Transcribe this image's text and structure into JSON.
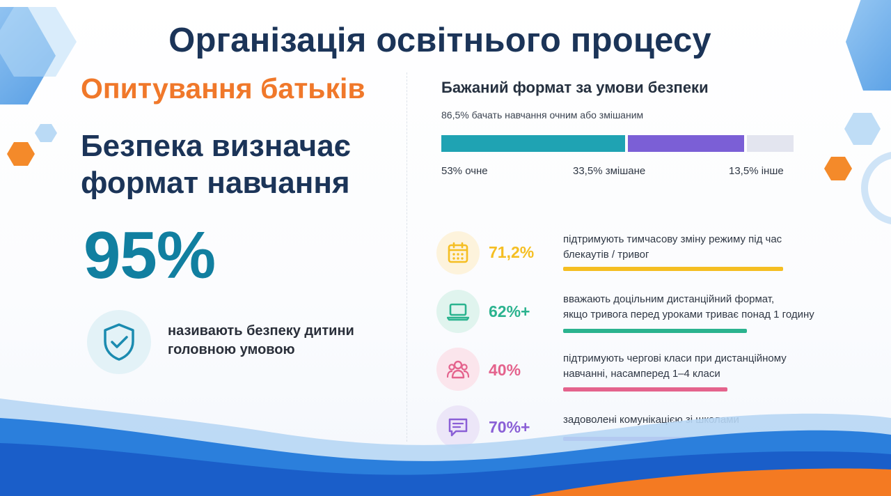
{
  "header": {
    "title": "Організація освітнього процесу"
  },
  "left": {
    "subtitle": "Опитування батьків",
    "headline_line1": "Безпека визначає",
    "headline_line2": "формат навчання",
    "big_number": "95%",
    "safety_text_line1": "називають безпеку дитини",
    "safety_text_line2": "головною умовою",
    "icon": "shield-check-icon"
  },
  "right": {
    "title": "Бажаний формат за умови безпеки",
    "note": "86,5% бачать навчання очним або змішаним",
    "format_bar": [
      {
        "label": "53% очне",
        "share": 53,
        "color": "#1fa3b3"
      },
      {
        "label": "33,5% змішане",
        "share": 33.5,
        "color": "#7b5fd6"
      },
      {
        "label": "13,5% інше",
        "share": 13.5,
        "color": "#e3e5ef"
      }
    ],
    "stats": [
      {
        "value": "71,2%",
        "line1": "підтримують тимчасову зміну режиму під час",
        "line2": "блекаутів / тривог",
        "icon": "calendar-icon",
        "color": "#f5be22",
        "bg": "#fdf3dc"
      },
      {
        "value": "62%+",
        "line1": "вважають доцільним дистанційний формат,",
        "line2": "якщо тривога перед уроками триває понад 1 годину",
        "icon": "laptop-icon",
        "color": "#2bb38f",
        "bg": "#e0f4ee"
      },
      {
        "value": "40%",
        "line1": "підтримують чергові класи при дистанційному",
        "line2": "навчанні, насамперед 1–4 класи",
        "icon": "people-icon",
        "color": "#e4638d",
        "bg": "#fbe5ec"
      },
      {
        "value": "70%+",
        "line1": "задоволені комунікацією зі школами",
        "line2": "",
        "icon": "chat-icon",
        "color": "#8a5fd6",
        "bg": "#ece6f8"
      }
    ]
  }
}
